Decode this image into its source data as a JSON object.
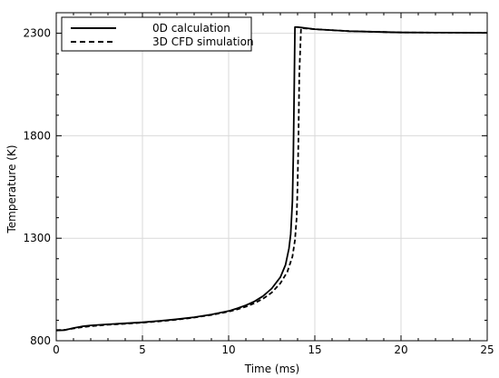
{
  "chart_data": {
    "type": "line",
    "title": "",
    "xlabel": "Time (ms)",
    "ylabel": "Temperature (K)",
    "xlim": [
      0,
      25
    ],
    "ylim": [
      800,
      2400
    ],
    "xticks": [
      0,
      5,
      10,
      15,
      20,
      25
    ],
    "yticks": [
      800,
      1300,
      1800,
      2300
    ],
    "grid": true,
    "legend_position": "top-left",
    "series": [
      {
        "name": "0D calculation",
        "style": "solid",
        "color": "#000000",
        "x": [
          0,
          0.5,
          1,
          1.5,
          2,
          3,
          4,
          5,
          6,
          7,
          8,
          9,
          10,
          10.5,
          11,
          11.5,
          12,
          12.5,
          13,
          13.3,
          13.5,
          13.6,
          13.7,
          13.75,
          13.8,
          13.85,
          14,
          15,
          17,
          20,
          22,
          25
        ],
        "y": [
          850,
          852,
          862,
          870,
          875,
          880,
          885,
          890,
          897,
          905,
          915,
          928,
          945,
          958,
          973,
          992,
          1018,
          1055,
          1110,
          1170,
          1250,
          1320,
          1480,
          1700,
          2000,
          2330,
          2330,
          2320,
          2310,
          2304,
          2303,
          2302
        ]
      },
      {
        "name": "3D CFD simulation",
        "style": "dashed",
        "color": "#000000",
        "x": [
          0,
          0.5,
          1,
          1.5,
          2,
          3,
          4,
          5,
          6,
          7,
          8,
          9,
          10,
          10.5,
          11,
          11.5,
          12,
          12.5,
          13,
          13.4,
          13.7,
          13.85,
          13.95,
          14.0,
          14.05,
          14.1,
          14.2,
          15,
          17,
          20,
          25
        ],
        "y": [
          852,
          853,
          860,
          866,
          871,
          878,
          883,
          888,
          895,
          903,
          913,
          926,
          942,
          953,
          966,
          983,
          1005,
          1035,
          1080,
          1135,
          1210,
          1290,
          1400,
          1560,
          1800,
          2100,
          2325,
          2320,
          2310,
          2304,
          2302
        ]
      }
    ]
  }
}
